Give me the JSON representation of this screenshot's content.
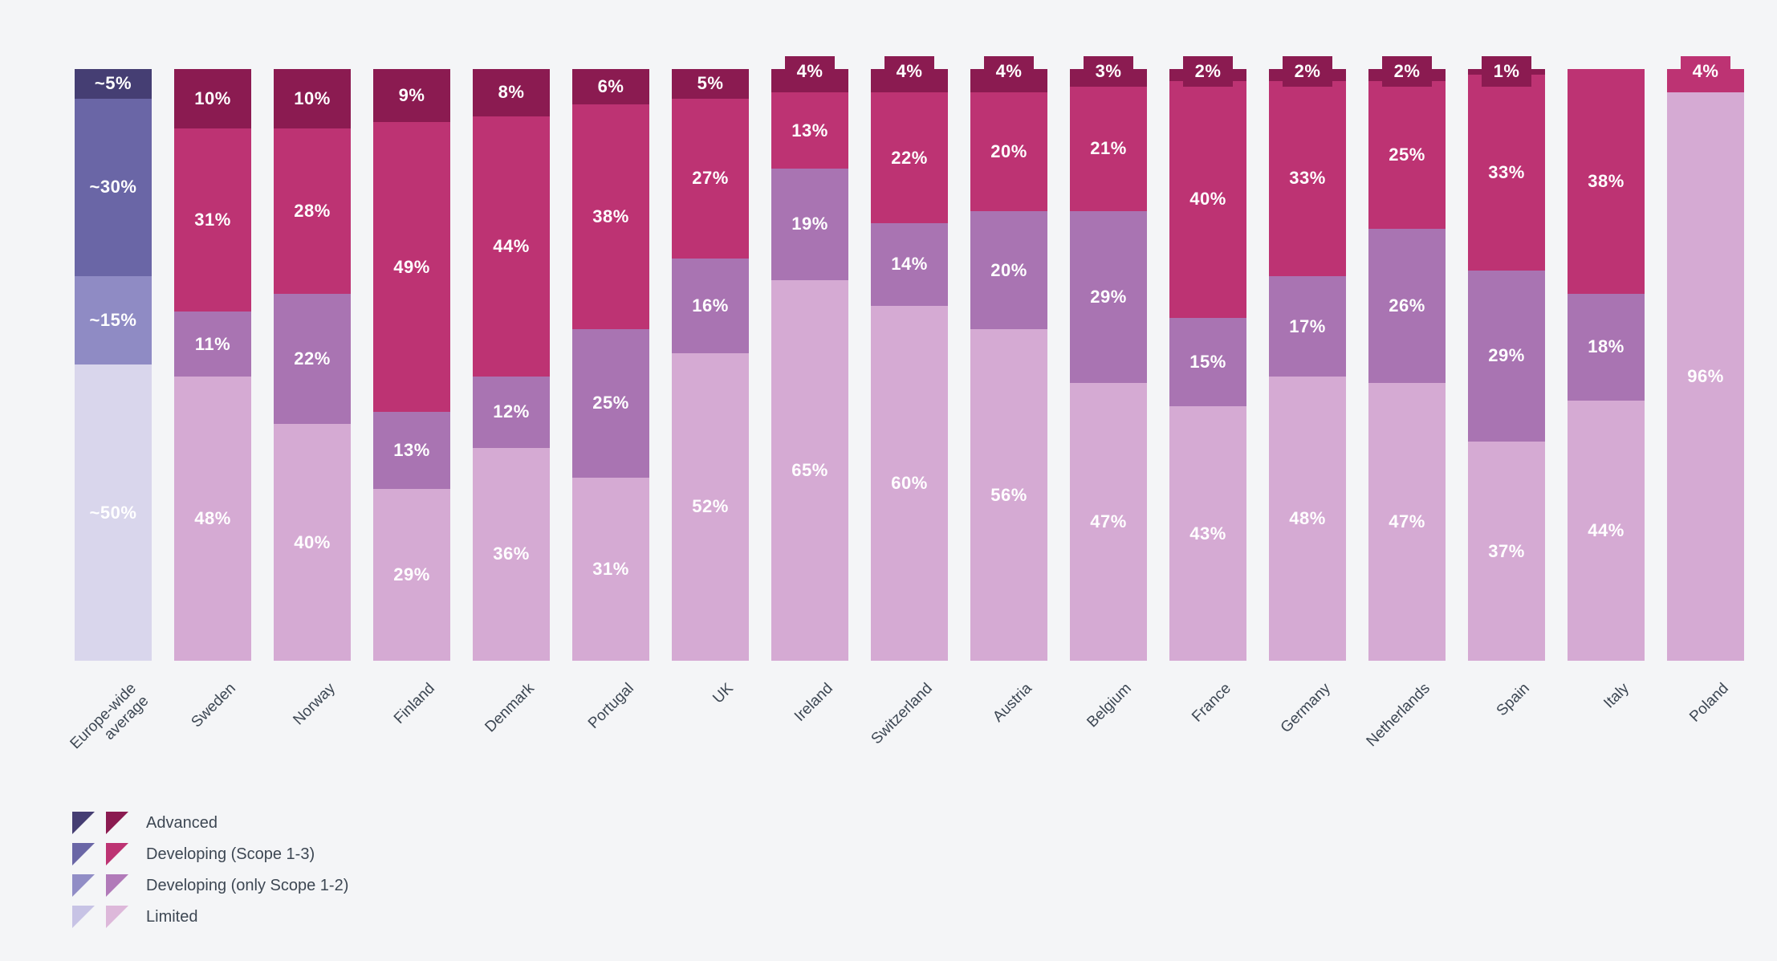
{
  "page": {
    "background": "#f4f5f7",
    "text_color": "#3d4753"
  },
  "chart_data": {
    "type": "bar",
    "variant": "stacked-100",
    "orientation": "vertical",
    "unit": "%",
    "grid": false,
    "legend_position": "bottom-left",
    "segment_order_top_to_bottom": [
      "Advanced",
      "Developing (Scope 1-3)",
      "Developing (only Scope 1-2)",
      "Limited"
    ],
    "categories": [
      "Europe-wide average",
      "Sweden",
      "Norway",
      "Finland",
      "Denmark",
      "Portugal",
      "UK",
      "Ireland",
      "Switzerland",
      "Austria",
      "Belgium",
      "France",
      "Germany",
      "Netherlands",
      "Spain",
      "Italy",
      "Poland"
    ],
    "palettes": {
      "europe": {
        "Advanced": "#453e73",
        "Developing (Scope 1-3)": "#6a66a6",
        "Developing (only Scope 1-2)": "#8f8bc4",
        "Limited": "#d9d6ec"
      },
      "country": {
        "Advanced": "#8b1b51",
        "Developing (Scope 1-3)": "#bd3373",
        "Developing (only Scope 1-2)": "#a974b2",
        "Limited": "#d5aad3"
      }
    },
    "legend": [
      {
        "label": "Advanced",
        "europe_color": "#453e73",
        "country_color": "#8b1b51"
      },
      {
        "label": "Developing (Scope 1-3)",
        "europe_color": "#6a66a6",
        "country_color": "#bd3373"
      },
      {
        "label": "Developing (only Scope 1-2)",
        "europe_color": "#918dc6",
        "country_color": "#b17ab9"
      },
      {
        "label": "Limited",
        "europe_color": "#c7c3e5",
        "country_color": "#ddb8da"
      }
    ],
    "bars": [
      {
        "label": "Europe-wide average",
        "label_lines": "Europe-wide\naverage",
        "palette": "europe",
        "segments": [
          {
            "category": "Advanced",
            "value": 5,
            "label": "~5%"
          },
          {
            "category": "Developing (Scope 1-3)",
            "value": 30,
            "label": "~30%"
          },
          {
            "category": "Developing (only Scope 1-2)",
            "value": 15,
            "label": "~15%"
          },
          {
            "category": "Limited",
            "value": 50,
            "label": "~50%"
          }
        ]
      },
      {
        "label": "Sweden",
        "palette": "country",
        "segments": [
          {
            "category": "Advanced",
            "value": 10,
            "label": "10%"
          },
          {
            "category": "Developing (Scope 1-3)",
            "value": 31,
            "label": "31%"
          },
          {
            "category": "Developing (only Scope 1-2)",
            "value": 11,
            "label": "11%"
          },
          {
            "category": "Limited",
            "value": 48,
            "label": "48%"
          }
        ]
      },
      {
        "label": "Norway",
        "palette": "country",
        "segments": [
          {
            "category": "Advanced",
            "value": 10,
            "label": "10%"
          },
          {
            "category": "Developing (Scope 1-3)",
            "value": 28,
            "label": "28%"
          },
          {
            "category": "Developing (only Scope 1-2)",
            "value": 22,
            "label": "22%"
          },
          {
            "category": "Limited",
            "value": 40,
            "label": "40%"
          }
        ]
      },
      {
        "label": "Finland",
        "palette": "country",
        "segments": [
          {
            "category": "Advanced",
            "value": 9,
            "label": "9%"
          },
          {
            "category": "Developing (Scope 1-3)",
            "value": 49,
            "label": "49%"
          },
          {
            "category": "Developing (only Scope 1-2)",
            "value": 13,
            "label": "13%"
          },
          {
            "category": "Limited",
            "value": 29,
            "label": "29%"
          }
        ]
      },
      {
        "label": "Denmark",
        "palette": "country",
        "segments": [
          {
            "category": "Advanced",
            "value": 8,
            "label": "8%"
          },
          {
            "category": "Developing (Scope 1-3)",
            "value": 44,
            "label": "44%"
          },
          {
            "category": "Developing (only Scope 1-2)",
            "value": 12,
            "label": "12%"
          },
          {
            "category": "Limited",
            "value": 36,
            "label": "36%"
          }
        ]
      },
      {
        "label": "Portugal",
        "palette": "country",
        "segments": [
          {
            "category": "Advanced",
            "value": 6,
            "label": "6%"
          },
          {
            "category": "Developing (Scope 1-3)",
            "value": 38,
            "label": "38%"
          },
          {
            "category": "Developing (only Scope 1-2)",
            "value": 25,
            "label": "25%"
          },
          {
            "category": "Limited",
            "value": 31,
            "label": "31%"
          }
        ]
      },
      {
        "label": "UK",
        "palette": "country",
        "segments": [
          {
            "category": "Advanced",
            "value": 5,
            "label": "5%"
          },
          {
            "category": "Developing (Scope 1-3)",
            "value": 27,
            "label": "27%"
          },
          {
            "category": "Developing (only Scope 1-2)",
            "value": 16,
            "label": "16%"
          },
          {
            "category": "Limited",
            "value": 52,
            "label": "52%"
          }
        ]
      },
      {
        "label": "Ireland",
        "palette": "country",
        "segments": [
          {
            "category": "Advanced",
            "value": 4,
            "label": "4%"
          },
          {
            "category": "Developing (Scope 1-3)",
            "value": 13,
            "label": "13%"
          },
          {
            "category": "Developing (only Scope 1-2)",
            "value": 19,
            "label": "19%"
          },
          {
            "category": "Limited",
            "value": 65,
            "label": "65%"
          }
        ]
      },
      {
        "label": "Switzerland",
        "palette": "country",
        "segments": [
          {
            "category": "Advanced",
            "value": 4,
            "label": "4%"
          },
          {
            "category": "Developing (Scope 1-3)",
            "value": 22,
            "label": "22%"
          },
          {
            "category": "Developing (only Scope 1-2)",
            "value": 14,
            "label": "14%"
          },
          {
            "category": "Limited",
            "value": 60,
            "label": "60%"
          }
        ]
      },
      {
        "label": "Austria",
        "palette": "country",
        "segments": [
          {
            "category": "Advanced",
            "value": 4,
            "label": "4%"
          },
          {
            "category": "Developing (Scope 1-3)",
            "value": 20,
            "label": "20%"
          },
          {
            "category": "Developing (only Scope 1-2)",
            "value": 20,
            "label": "20%"
          },
          {
            "category": "Limited",
            "value": 56,
            "label": "56%"
          }
        ]
      },
      {
        "label": "Belgium",
        "palette": "country",
        "segments": [
          {
            "category": "Advanced",
            "value": 3,
            "label": "3%"
          },
          {
            "category": "Developing (Scope 1-3)",
            "value": 21,
            "label": "21%"
          },
          {
            "category": "Developing (only Scope 1-2)",
            "value": 29,
            "label": "29%"
          },
          {
            "category": "Limited",
            "value": 47,
            "label": "47%"
          }
        ]
      },
      {
        "label": "France",
        "palette": "country",
        "segments": [
          {
            "category": "Advanced",
            "value": 2,
            "label": "2%"
          },
          {
            "category": "Developing (Scope 1-3)",
            "value": 40,
            "label": "40%"
          },
          {
            "category": "Developing (only Scope 1-2)",
            "value": 15,
            "label": "15%"
          },
          {
            "category": "Limited",
            "value": 43,
            "label": "43%"
          }
        ]
      },
      {
        "label": "Germany",
        "palette": "country",
        "segments": [
          {
            "category": "Advanced",
            "value": 2,
            "label": "2%"
          },
          {
            "category": "Developing (Scope 1-3)",
            "value": 33,
            "label": "33%"
          },
          {
            "category": "Developing (only Scope 1-2)",
            "value": 17,
            "label": "17%"
          },
          {
            "category": "Limited",
            "value": 48,
            "label": "48%"
          }
        ]
      },
      {
        "label": "Netherlands",
        "palette": "country",
        "segments": [
          {
            "category": "Advanced",
            "value": 2,
            "label": "2%"
          },
          {
            "category": "Developing (Scope 1-3)",
            "value": 25,
            "label": "25%"
          },
          {
            "category": "Developing (only Scope 1-2)",
            "value": 26,
            "label": "26%"
          },
          {
            "category": "Limited",
            "value": 47,
            "label": "47%"
          }
        ]
      },
      {
        "label": "Spain",
        "palette": "country",
        "segments": [
          {
            "category": "Advanced",
            "value": 1,
            "label": "1%"
          },
          {
            "category": "Developing (Scope 1-3)",
            "value": 33,
            "label": "33%"
          },
          {
            "category": "Developing (only Scope 1-2)",
            "value": 29,
            "label": "29%"
          },
          {
            "category": "Limited",
            "value": 37,
            "label": "37%"
          }
        ]
      },
      {
        "label": "Italy",
        "palette": "country",
        "segments": [
          {
            "category": "Developing (Scope 1-3)",
            "value": 38,
            "label": "38%"
          },
          {
            "category": "Developing (only Scope 1-2)",
            "value": 18,
            "label": "18%"
          },
          {
            "category": "Limited",
            "value": 44,
            "label": "44%"
          }
        ]
      },
      {
        "label": "Poland",
        "palette": "country",
        "segments": [
          {
            "category": "Developing (Scope 1-3)",
            "value": 4,
            "label": "4%"
          },
          {
            "category": "Limited",
            "value": 96,
            "label": "96%"
          }
        ]
      }
    ]
  }
}
